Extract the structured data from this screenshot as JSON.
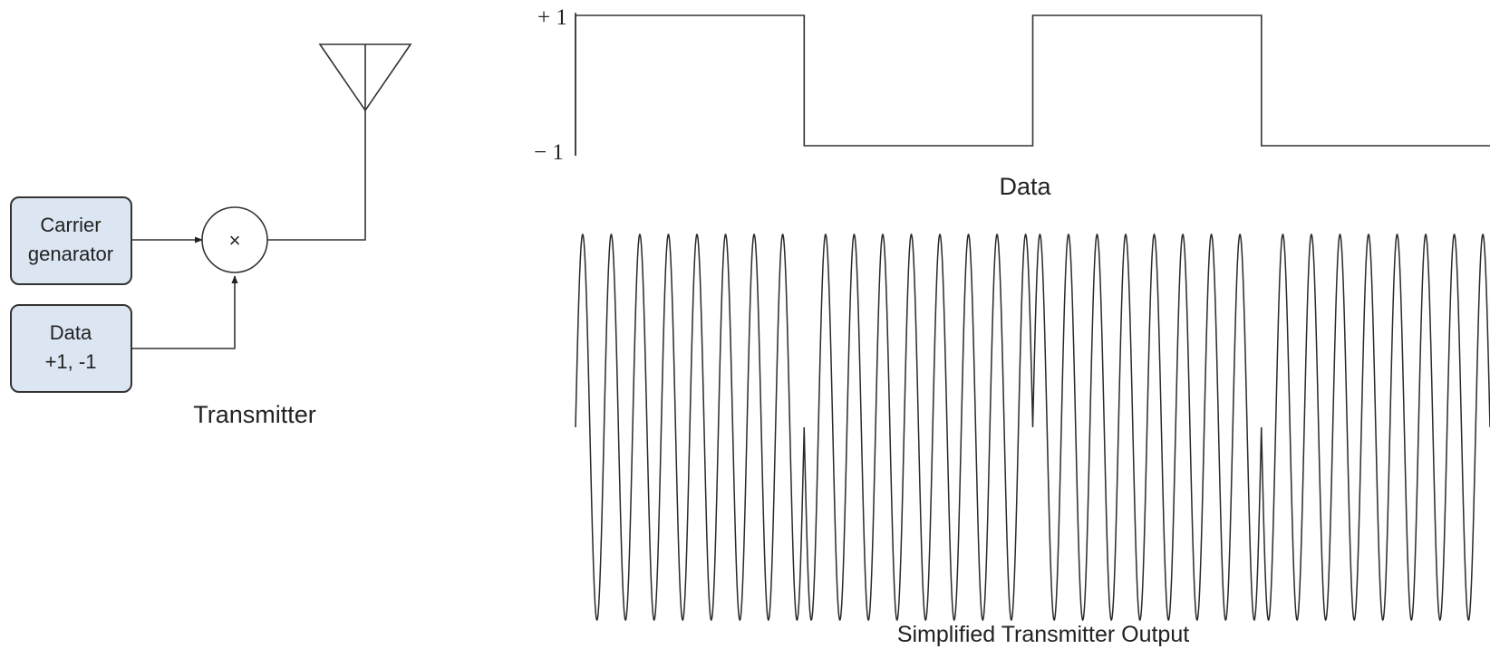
{
  "transmitter": {
    "carrier_box": {
      "line1": "Carrier",
      "line2": "genarator"
    },
    "data_box": {
      "line1": "Data",
      "line2": "+1, -1"
    },
    "mixer_symbol": "×",
    "caption": "Transmitter"
  },
  "data_plot": {
    "y_top_label": "+ 1",
    "y_bottom_label": "− 1",
    "caption": "Data",
    "levels": [
      1,
      -1,
      1,
      -1
    ]
  },
  "output_plot": {
    "caption": "Simplified Transmitter Output",
    "cycles_per_bit": 8
  }
}
